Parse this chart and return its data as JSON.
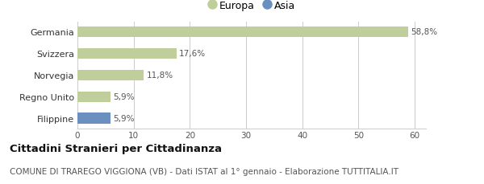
{
  "categories": [
    "Filippine",
    "Regno Unito",
    "Norvegia",
    "Svizzera",
    "Germania"
  ],
  "values": [
    5.9,
    5.9,
    11.8,
    17.6,
    58.8
  ],
  "labels": [
    "5,9%",
    "5,9%",
    "11,8%",
    "17,6%",
    "58,8%"
  ],
  "colors": [
    "#6b8fbe",
    "#bfce9a",
    "#bfce9a",
    "#bfce9a",
    "#bfce9a"
  ],
  "legend_entries": [
    {
      "label": "Europa",
      "color": "#bfce9a"
    },
    {
      "label": "Asia",
      "color": "#6b8fbe"
    }
  ],
  "xlim": [
    0,
    62
  ],
  "xticks": [
    0,
    10,
    20,
    30,
    40,
    50,
    60
  ],
  "title_bold": "Cittadini Stranieri per Cittadinanza",
  "subtitle": "COMUNE DI TRAREGO VIGGIONA (VB) - Dati ISTAT al 1° gennaio - Elaborazione TUTTITALIA.IT",
  "background_color": "#ffffff",
  "bar_height": 0.5,
  "label_fontsize": 7.5,
  "tick_fontsize": 7.5,
  "ytick_fontsize": 8,
  "title_fontsize": 9.5,
  "subtitle_fontsize": 7.5,
  "legend_fontsize": 9
}
